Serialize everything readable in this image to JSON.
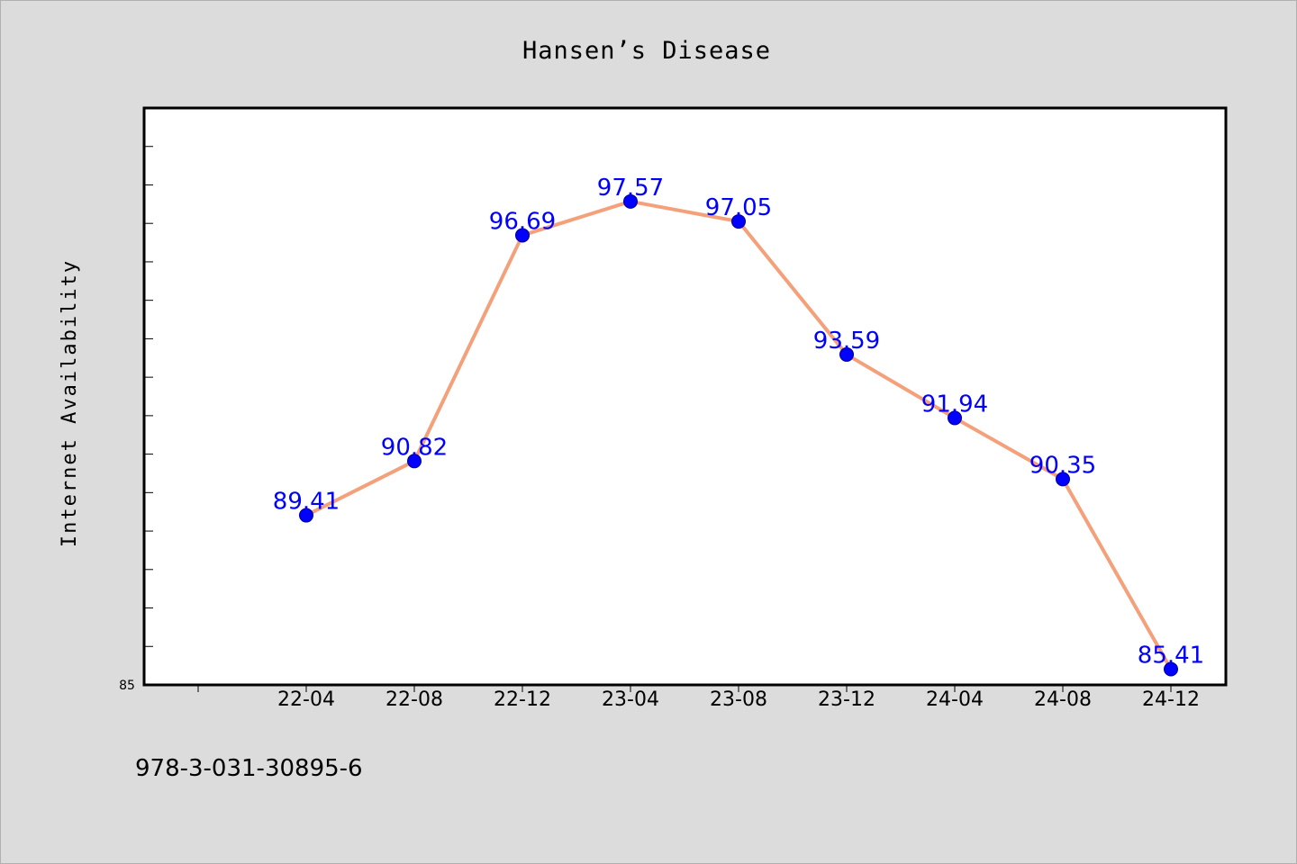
{
  "footer_text": "978-3-031-30895-6",
  "chart_data": {
    "type": "line",
    "title": "Hansen’s Disease",
    "xlabel": "",
    "ylabel": "Internet Availability",
    "categories": [
      "22-04",
      "22-08",
      "22-12",
      "23-04",
      "23-08",
      "23-12",
      "24-04",
      "24-08",
      "24-12"
    ],
    "series": [
      {
        "values": [
          89.41,
          90.82,
          96.69,
          97.57,
          97.05,
          93.59,
          91.94,
          90.35,
          85.41
        ],
        "data_labels": [
          "89.41",
          "90.82",
          "96.69",
          "97.57",
          "97.05",
          "93.59",
          "91.94",
          "90.35",
          "85.41"
        ],
        "line_color": "#f4a07a",
        "marker_color": "#0000ff"
      }
    ],
    "y_tick_label": "85",
    "ylim": [
      85,
      100
    ],
    "y_minor_step": 1,
    "grid": false,
    "legend": "none",
    "background_color": "#dcdcdc",
    "plot_background_color": "#ffffff"
  }
}
